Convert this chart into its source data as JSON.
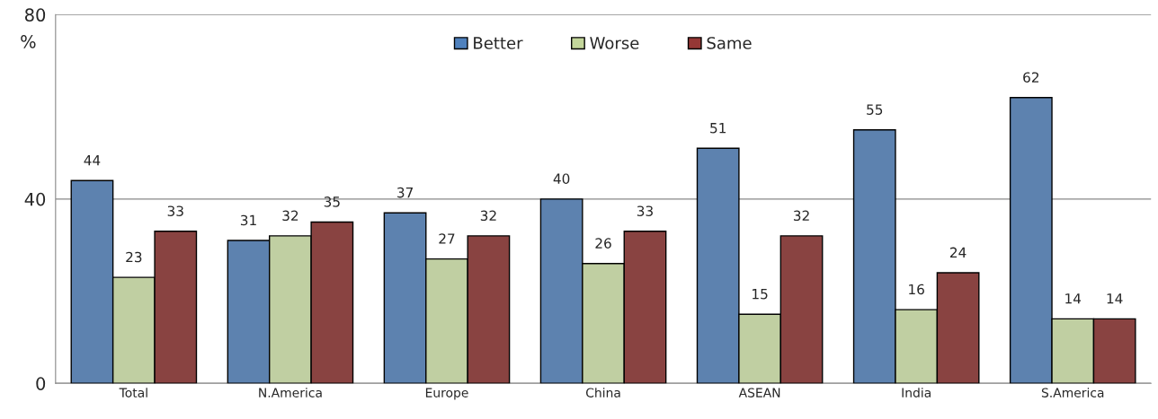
{
  "chart_data": {
    "type": "bar",
    "categories": [
      "Total",
      "N.America",
      "Europe",
      "China",
      "ASEAN",
      "India",
      "S.America"
    ],
    "series": [
      {
        "name": "Better",
        "color": "#4f81bd",
        "values": [
          44,
          31,
          37,
          40,
          51,
          55,
          62
        ]
      },
      {
        "name": "Worse",
        "color": "#c3d69b",
        "values": [
          23,
          32,
          27,
          26,
          15,
          16,
          14
        ]
      },
      {
        "name": "Same",
        "color": "#953735",
        "values": [
          33,
          35,
          32,
          33,
          32,
          24,
          14
        ]
      }
    ],
    "ylabel": "%",
    "ylim": [
      0,
      80
    ],
    "yticks": [
      0,
      40,
      80
    ],
    "grid": "y",
    "legend": "top",
    "data_labels": true
  }
}
